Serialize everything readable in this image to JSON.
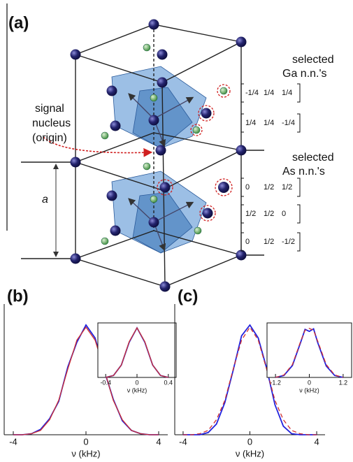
{
  "diagram": {
    "panel": "(a)",
    "signal_label": [
      "signal",
      "nucleus",
      "(origin)"
    ],
    "lattice_label": "a",
    "ga_heading": [
      "selected",
      "Ga n.n.'s"
    ],
    "ga_vectors": [
      [
        "-1/4",
        "1/4",
        "1/4"
      ],
      [
        "1/4",
        "1/4",
        "-1/4"
      ]
    ],
    "as_heading": [
      "selected",
      "As n.n.'s"
    ],
    "as_vectors": [
      [
        "0",
        "1/2",
        "1/2"
      ],
      [
        "1/2",
        "1/2",
        "0"
      ],
      [
        "0",
        "1/2",
        "-1/2"
      ]
    ]
  },
  "chart_data": [
    {
      "type": "line",
      "title": "(b)",
      "xlabel": "ν (kHz)",
      "x": [
        -4,
        -3.5,
        -3,
        -2.5,
        -2,
        -1.5,
        -1,
        -0.5,
        0,
        0.5,
        1,
        1.5,
        2,
        2.5,
        3,
        3.5,
        4
      ],
      "series": [
        {
          "color": "#2222dd",
          "values": [
            0,
            0,
            0.01,
            0.05,
            0.15,
            0.31,
            0.63,
            0.86,
            1.02,
            0.9,
            0.6,
            0.33,
            0.13,
            0.04,
            0.01,
            0,
            0
          ]
        },
        {
          "color": "#d03030",
          "values": [
            0,
            0,
            0.01,
            0.04,
            0.14,
            0.32,
            0.61,
            0.88,
            1,
            0.88,
            0.61,
            0.32,
            0.14,
            0.04,
            0.01,
            0,
            0
          ]
        }
      ],
      "xlim": [
        -4.5,
        4.5
      ],
      "xticks": [
        -4,
        0,
        4
      ],
      "ylim": [
        0,
        1.15
      ]
    },
    {
      "type": "line",
      "xlabel": "ν (kHz)",
      "x": [
        -0.4,
        -0.3,
        -0.2,
        -0.1,
        0,
        0.1,
        0.2,
        0.3,
        0.4
      ],
      "series": [
        {
          "color": "#2222dd",
          "values": [
            0,
            0.04,
            0.25,
            0.71,
            1,
            0.71,
            0.25,
            0.04,
            0
          ]
        },
        {
          "color": "#d03030",
          "values": [
            0,
            0.04,
            0.25,
            0.72,
            1,
            0.72,
            0.25,
            0.04,
            0
          ]
        }
      ],
      "xlim": [
        -0.5,
        0.5
      ],
      "xticks": [
        -0.4,
        0,
        0.4
      ],
      "ylim": [
        0,
        1.1
      ]
    },
    {
      "type": "line",
      "title": "(c)",
      "xlabel": "ν (kHz)",
      "x": [
        -4,
        -3.5,
        -3,
        -2.5,
        -2,
        -1.5,
        -1,
        -0.5,
        0,
        0.5,
        1,
        1.5,
        2,
        2.5,
        3,
        3.5,
        4
      ],
      "series": [
        {
          "color": "#2222dd",
          "values": [
            0,
            0,
            0,
            0.02,
            0.1,
            0.3,
            0.6,
            0.92,
            1.02,
            0.9,
            0.62,
            0.28,
            0.08,
            0.01,
            0,
            0,
            0
          ]
        },
        {
          "color": "#d03030",
          "dashed": true,
          "values": [
            0,
            0,
            0.01,
            0.04,
            0.14,
            0.32,
            0.61,
            0.88,
            1,
            0.88,
            0.61,
            0.32,
            0.14,
            0.04,
            0.01,
            0,
            0
          ]
        }
      ],
      "xlim": [
        -4.5,
        4.5
      ],
      "xticks": [
        -4,
        0,
        4
      ],
      "ylim": [
        0,
        1.15
      ]
    },
    {
      "type": "line",
      "xlabel": "ν (kHz)",
      "x": [
        -1.2,
        -0.9,
        -0.6,
        -0.3,
        -0.15,
        0,
        0.15,
        0.3,
        0.6,
        0.9,
        1.2
      ],
      "series": [
        {
          "color": "#2222dd",
          "values": [
            0,
            0.04,
            0.24,
            0.72,
            0.97,
            0.93,
            0.98,
            0.7,
            0.23,
            0.04,
            0
          ]
        },
        {
          "color": "#d03030",
          "dashed": true,
          "values": [
            0,
            0.05,
            0.26,
            0.74,
            0.95,
            0.99,
            0.95,
            0.73,
            0.26,
            0.05,
            0
          ]
        }
      ],
      "xlim": [
        -1.5,
        1.5
      ],
      "xticks": [
        -1.2,
        0,
        1.2
      ],
      "ylim": [
        0,
        1.1
      ]
    }
  ]
}
